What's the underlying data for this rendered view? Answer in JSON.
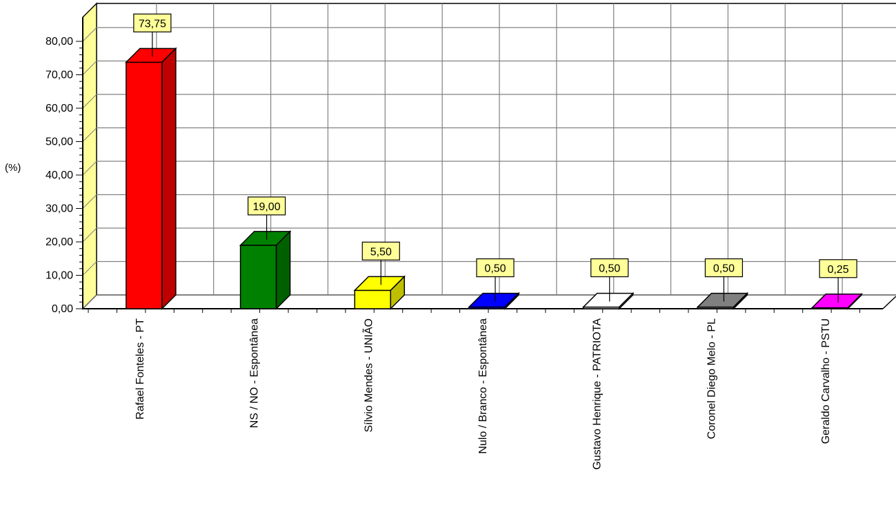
{
  "chart_data": {
    "type": "bar",
    "title": "",
    "xlabel": "",
    "ylabel": "(%)",
    "ylim": [
      0,
      80
    ],
    "yticks": [
      "0,00",
      "10,00",
      "20,00",
      "30,00",
      "40,00",
      "50,00",
      "60,00",
      "70,00",
      "80,00"
    ],
    "grid": true,
    "legend": "none",
    "bar_style": "3d",
    "categories": [
      "Rafael Fonteles - PT",
      "NS / NO - Espontânea",
      "Sílvio Mendes - UNIÃO",
      "Nulo / Branco - Espontânea",
      "Gustavo Henrique - PATRIOTA",
      "Coronel Diego Melo - PL",
      "Geraldo Carvalho - PSTU"
    ],
    "values": [
      73.75,
      19.0,
      5.5,
      0.5,
      0.5,
      0.5,
      0.25
    ],
    "value_labels": [
      "73,75",
      "19,00",
      "5,50",
      "0,50",
      "0,50",
      "0,50",
      "0,25"
    ],
    "colors": [
      "#ff0000",
      "#008000",
      "#ffff00",
      "#0000ff",
      "#ffffff",
      "#808080",
      "#ff00ff"
    ],
    "label_box_color": "#ffff99",
    "wall_color": "#ffff99"
  }
}
